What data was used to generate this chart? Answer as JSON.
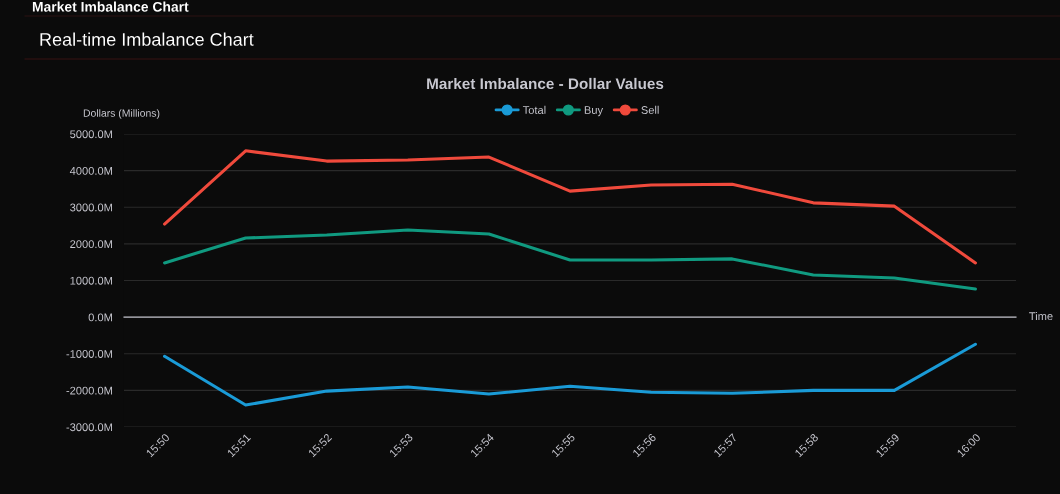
{
  "chart_data": {
    "type": "line",
    "title": "Market Imbalance - Dollar Values",
    "ylabel": "Dollars (Millions)",
    "xlabel": "Time",
    "annotations": [
      "Market Imbalance Chart",
      "Real-time Imbalance Chart"
    ],
    "categories": [
      "15:50",
      "15:51",
      "15:52",
      "15:53",
      "15:54",
      "15:55",
      "15:56",
      "15:57",
      "15:58",
      "15:59",
      "16:00"
    ],
    "series": [
      {
        "name": "Total",
        "color": "#1a9bd7",
        "values": [
          -1070,
          -2400,
          -2020,
          -1910,
          -2100,
          -1890,
          -2050,
          -2080,
          -2000,
          -2000,
          -740
        ]
      },
      {
        "name": "Buy",
        "color": "#109a80",
        "values": [
          1480,
          2160,
          2240,
          2380,
          2270,
          1560,
          1560,
          1590,
          1150,
          1070,
          770
        ]
      },
      {
        "name": "Sell",
        "color": "#f04a3c",
        "values": [
          2540,
          4540,
          4260,
          4290,
          4370,
          3440,
          3610,
          3630,
          3120,
          3030,
          1480
        ]
      }
    ],
    "ylim": [
      -3000,
      5000
    ],
    "yticks": [
      {
        "value": -3000,
        "label": "-3000.0M"
      },
      {
        "value": -2000,
        "label": "-2000.0M"
      },
      {
        "value": -1000,
        "label": "-1000.0M"
      },
      {
        "value": 0,
        "label": "0.0M"
      },
      {
        "value": 1000,
        "label": "1000.0M"
      },
      {
        "value": 2000,
        "label": "2000.0M"
      },
      {
        "value": 3000,
        "label": "3000.0M"
      },
      {
        "value": 4000,
        "label": "4000.0M"
      },
      {
        "value": 5000,
        "label": "5000.0M"
      }
    ],
    "grid": "y",
    "legend": "top",
    "marker": "none",
    "line_style": "solid"
  }
}
